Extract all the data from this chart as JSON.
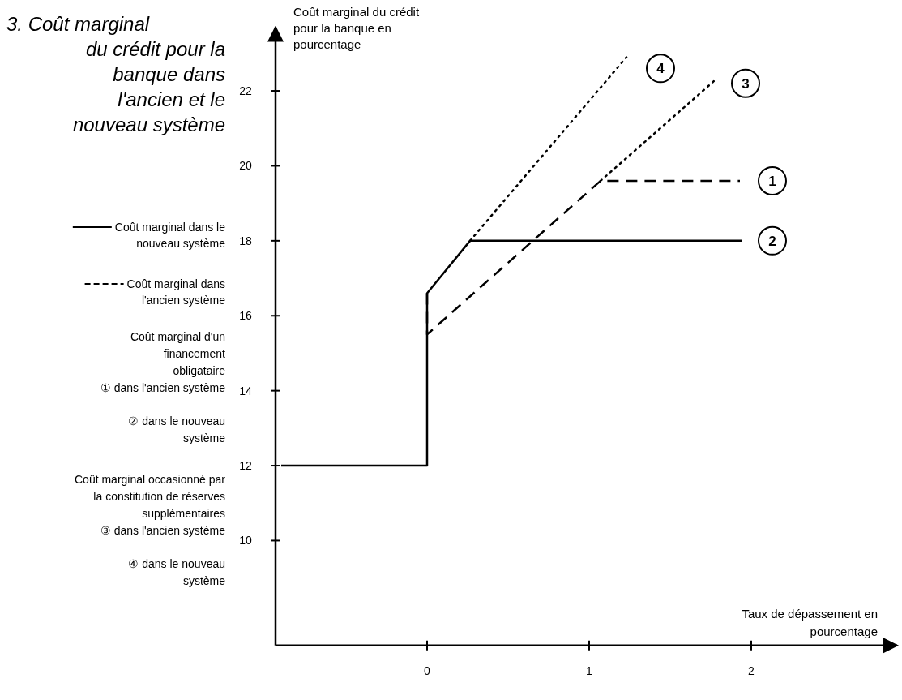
{
  "chart_data": {
    "type": "line",
    "title": "3. Coût marginal du crédit pour la banque dans l'ancien et le nouveau système",
    "xlabel": "Taux de dépassement en pourcentage",
    "ylabel": "Coût marginal du crédit pour la banque en pourcentage",
    "xlim": [
      -0.935,
      2.9
    ],
    "ylim": [
      7.2,
      23.7
    ],
    "xticks": [
      0,
      1,
      2
    ],
    "yticks": [
      10,
      12,
      14,
      16,
      18,
      20,
      22
    ],
    "grid": false,
    "legend": "left",
    "marker": "none",
    "series": [
      {
        "name": "Coût marginal dans le nouveau système",
        "color": "#000000",
        "line_style": "solid",
        "x": [
          -0.9,
          0,
          0,
          0.265,
          1.94
        ],
        "values": [
          12,
          12,
          16.6,
          18,
          18
        ]
      },
      {
        "name": "Coût marginal dans l'ancien système",
        "color": "#000000",
        "line_style": "dashed",
        "x": [
          0,
          0,
          1.07,
          1.93
        ],
        "values": [
          16.6,
          15.5,
          19.6,
          19.6
        ]
      },
      {
        "color": "#000000",
        "line_style": "dotted",
        "x": [
          1.07,
          1.78
        ],
        "values": [
          19.6,
          22.3
        ]
      },
      {
        "color": "#000000",
        "line_style": "dotted",
        "x": [
          0.265,
          1.23
        ],
        "values": [
          18,
          22.9
        ]
      }
    ],
    "annotations": [
      "Coût marginal d'un financement obligataire",
      "① dans l'ancien système",
      "② dans le nouveau système",
      "Coût marginal occasionné par la constitution de réserves supplémentaires",
      "③ dans l'ancien système",
      "④ dans le nouveau système",
      {
        "text": "1",
        "x": 2.13,
        "y": 19.6
      },
      {
        "text": "2",
        "x": 2.13,
        "y": 18
      },
      {
        "text": "3",
        "x": 1.965,
        "y": 22.2
      },
      {
        "text": "4",
        "x": 1.44,
        "y": 22.6
      }
    ]
  }
}
